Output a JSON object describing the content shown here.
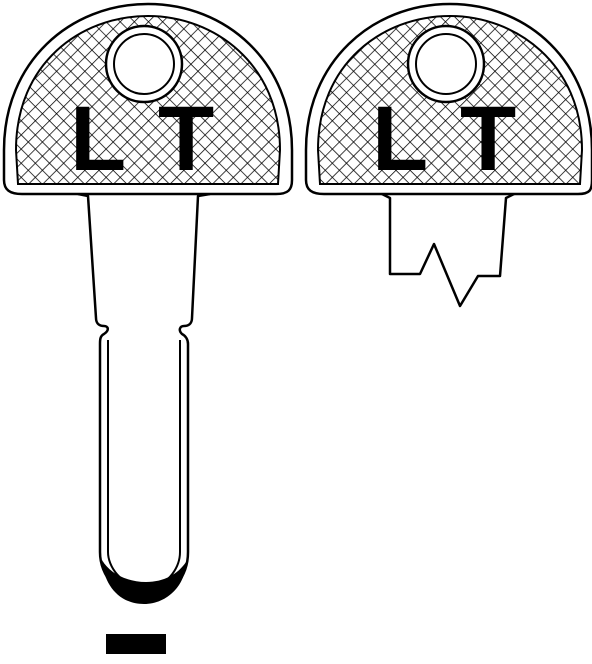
{
  "brand": {
    "letter_left": "L",
    "letter_right": "T"
  },
  "colors": {
    "ink": "#000000",
    "paper": "#ffffff"
  },
  "items": [
    {
      "id": "full-key",
      "description_icon": "key-blank-icon"
    },
    {
      "id": "cut-key",
      "description_icon": "key-profile-icon"
    }
  ]
}
